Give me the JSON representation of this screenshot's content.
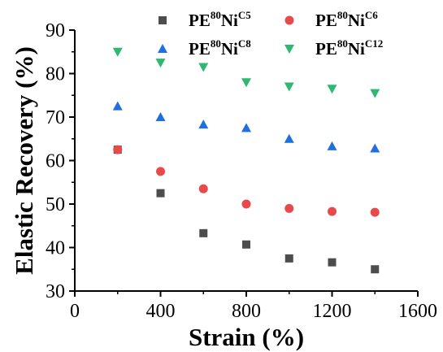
{
  "chart_data": {
    "type": "scatter",
    "title": "",
    "xlabel": "Strain (%)",
    "ylabel": "Elastic Recovery (%)",
    "xlim": [
      0,
      1600
    ],
    "ylim": [
      30,
      90
    ],
    "x_ticks": [
      0,
      400,
      800,
      1200,
      1600
    ],
    "y_ticks": [
      30,
      40,
      50,
      60,
      70,
      80,
      90
    ],
    "grid": false,
    "legend_position": "top",
    "series": [
      {
        "name": "PE80NiC5",
        "legend": {
          "base": "PE",
          "sup1": "80",
          "mid": "Ni",
          "sup2": "C5"
        },
        "marker": "square",
        "color": "#4d4d4d",
        "x": [
          200,
          400,
          600,
          800,
          1000,
          1200,
          1400
        ],
        "y": [
          62.5,
          52.5,
          43.3,
          40.7,
          37.5,
          36.6,
          35.0
        ]
      },
      {
        "name": "PE80NiC6",
        "legend": {
          "base": "PE",
          "sup1": "80",
          "mid": "Ni",
          "sup2": "C6"
        },
        "marker": "circle",
        "color": "#e84a4a",
        "x": [
          200,
          400,
          600,
          800,
          1000,
          1200,
          1400
        ],
        "y": [
          62.5,
          57.5,
          53.5,
          50.0,
          49.0,
          48.3,
          48.1
        ]
      },
      {
        "name": "PE80NiC8",
        "legend": {
          "base": "PE",
          "sup1": "80",
          "mid": "Ni",
          "sup2": "C8"
        },
        "marker": "triangle-up",
        "color": "#1f6fe0",
        "x": [
          200,
          400,
          600,
          800,
          1000,
          1200,
          1400
        ],
        "y": [
          72.5,
          70.0,
          68.3,
          67.5,
          65.0,
          63.3,
          62.8
        ]
      },
      {
        "name": "PE80NiC12",
        "legend": {
          "base": "PE",
          "sup1": "80",
          "mid": "Ni",
          "sup2": "C12"
        },
        "marker": "triangle-down",
        "color": "#2eb872",
        "x": [
          200,
          400,
          600,
          800,
          1000,
          1200,
          1400
        ],
        "y": [
          85.0,
          82.5,
          81.5,
          78.0,
          77.0,
          76.5,
          75.5
        ]
      }
    ]
  }
}
